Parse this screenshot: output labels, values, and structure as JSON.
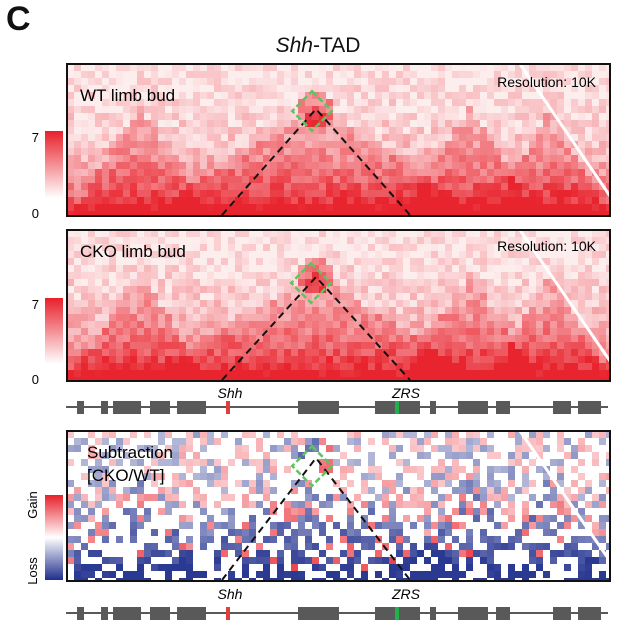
{
  "figure": {
    "panel_letter": "C",
    "title_italic": "Shh",
    "title_rest": "-TAD"
  },
  "panels": [
    {
      "id": "wt",
      "label": "WT limb bud",
      "resolution": "Resolution: 10K",
      "colorbar": {
        "max": "7",
        "min": "0"
      }
    },
    {
      "id": "cko",
      "label": "CKO limb bud",
      "resolution": "Resolution: 10K",
      "colorbar": {
        "max": "7",
        "min": "0"
      }
    },
    {
      "id": "sub",
      "label_line1": "Subtraction",
      "label_line2": "[CKO/WT]",
      "colorbar": {
        "gain": "Gain",
        "loss": "Loss"
      }
    }
  ],
  "tracks": [
    {
      "shh_label": "Shh",
      "zrs_label": "ZRS"
    },
    {
      "shh_label": "Shh",
      "zrs_label": "ZRS"
    }
  ],
  "colors": {
    "heat": "#e8202a",
    "gain": "#e8202a",
    "loss": "#1f2e8c",
    "shh_marker": "#e0403a",
    "zrs_marker": "#22b04a",
    "highlight_box": "#5ec45e",
    "gene_block": "#595959"
  }
}
